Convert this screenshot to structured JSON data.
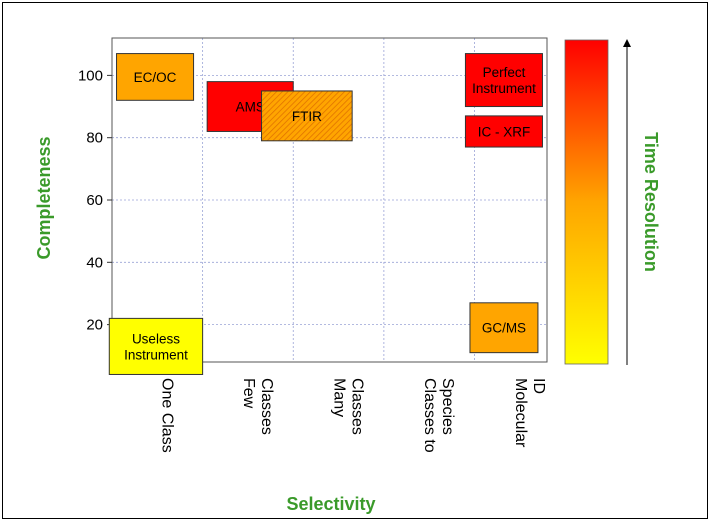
{
  "chart_data": {
    "type": "box",
    "xlabel": "Selectivity",
    "ylabel": "Completeness",
    "categories": [
      "One Class",
      "Few Classes",
      "Many Classes",
      "Classes to Species",
      "Molecular ID"
    ],
    "category_lines": [
      [
        "One Class"
      ],
      [
        "Few",
        "Classes"
      ],
      [
        "Many",
        "Classes"
      ],
      [
        "Classes to",
        "Species"
      ],
      [
        "Molecular",
        "ID"
      ]
    ],
    "xlim": [
      0.5,
      5.3
    ],
    "ylim": [
      8,
      112
    ],
    "yticks": [
      20,
      40,
      60,
      80,
      100
    ],
    "grid": true,
    "boxes": [
      {
        "label_lines": [
          "EC/OC"
        ],
        "x": [
          0.55,
          1.4
        ],
        "y": [
          92,
          107
        ],
        "color": "#ffa500",
        "hatched": false
      },
      {
        "label_lines": [
          "AMS"
        ],
        "x": [
          1.55,
          2.5
        ],
        "y": [
          82,
          98
        ],
        "color": "#ff0000",
        "hatched": false
      },
      {
        "label_lines": [
          "FTIR"
        ],
        "x": [
          2.15,
          3.15
        ],
        "y": [
          79,
          95
        ],
        "color": "#ffa500",
        "hatched": true
      },
      {
        "label_lines": [
          "Perfect",
          "Instrument"
        ],
        "x": [
          4.4,
          5.25
        ],
        "y": [
          90,
          107
        ],
        "color": "#ff0000",
        "hatched": false
      },
      {
        "label_lines": [
          "IC - XRF"
        ],
        "x": [
          4.4,
          5.25
        ],
        "y": [
          77,
          87
        ],
        "color": "#ff0000",
        "hatched": false
      },
      {
        "label_lines": [
          "Useless",
          "Instrument"
        ],
        "x": [
          0.47,
          1.5
        ],
        "y": [
          4,
          22
        ],
        "color": "#ffff00",
        "hatched": false
      },
      {
        "label_lines": [
          "GC/MS"
        ],
        "x": [
          4.45,
          5.2
        ],
        "y": [
          11,
          27
        ],
        "color": "#ffa500",
        "hatched": false
      }
    ],
    "colorbar": {
      "label": "Time Resolution",
      "colors": [
        "#ffff00",
        "#ffa500",
        "#ff0000"
      ]
    }
  }
}
